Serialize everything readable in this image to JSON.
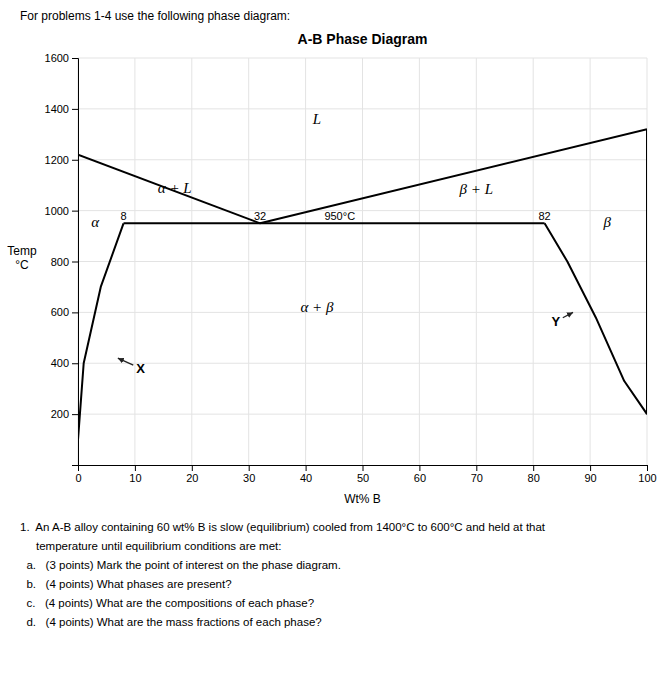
{
  "chart_data": {
    "type": "line",
    "title": "A-B Phase Diagram",
    "subtitle": "For problems 1-4 use the following phase diagram:",
    "xlabel": "Wt% B",
    "ylabel": "Temp\n°C",
    "xlim": [
      0,
      100
    ],
    "ylim": [
      0,
      1600
    ],
    "xticks": [
      0,
      10,
      20,
      30,
      40,
      50,
      60,
      70,
      80,
      90,
      100
    ],
    "yticks": [
      200,
      400,
      600,
      800,
      1000,
      1200,
      1400,
      1600
    ],
    "grid": true,
    "color": "#000000",
    "series": [
      {
        "x": [
          0,
          0
        ],
        "values": [
          100,
          1220
        ]
      },
      {
        "x": [
          0,
          32
        ],
        "values": [
          1220,
          950
        ]
      },
      {
        "x": [
          32,
          100
        ],
        "values": [
          950,
          1320
        ]
      },
      {
        "x": [
          8,
          4,
          1,
          0
        ],
        "values": [
          950,
          700,
          400,
          100
        ]
      },
      {
        "x": [
          82,
          86,
          91,
          96,
          100
        ],
        "values": [
          950,
          800,
          580,
          330,
          200
        ]
      },
      {
        "x": [
          100,
          100
        ],
        "values": [
          200,
          1320
        ]
      },
      {
        "x": [
          8,
          82
        ],
        "values": [
          950,
          950
        ]
      }
    ],
    "region_labels": [
      {
        "text": "L",
        "x": 42,
        "y": 1360
      },
      {
        "text": "α + L",
        "x": 17,
        "y": 1090
      },
      {
        "text": "β + L",
        "x": 70,
        "y": 1085
      },
      {
        "text": "α",
        "x": 3,
        "y": 955
      },
      {
        "text": "β",
        "x": 93,
        "y": 955
      },
      {
        "text": "α + β",
        "x": 42,
        "y": 620
      }
    ],
    "line_labels": [
      {
        "text": "8",
        "x": 8,
        "y": 957
      },
      {
        "text": "32",
        "x": 32,
        "y": 957
      },
      {
        "text": "950°C",
        "x": 46,
        "y": 957
      },
      {
        "text": "82",
        "x": 82,
        "y": 957
      }
    ],
    "markers": [
      {
        "text": "X",
        "x": 11,
        "y": 380,
        "to": [
          7,
          420
        ]
      },
      {
        "text": "Y",
        "x": 84,
        "y": 565,
        "to": [
          87,
          600
        ]
      }
    ],
    "notes": [
      "1.  An A-B alloy containing 60 wt% B is slow (equilibrium) cooled from 1400°C to 600°C and held at that",
      "     temperature until equilibrium conditions are met:",
      "  a.   (3 points) Mark the point of interest on the phase diagram.",
      "  b.   (4 points) What phases are present?",
      "  c.   (4 points) What are the compositions of each phase?",
      "  d.   (4 points) What are the mass fractions of each phase?"
    ]
  }
}
